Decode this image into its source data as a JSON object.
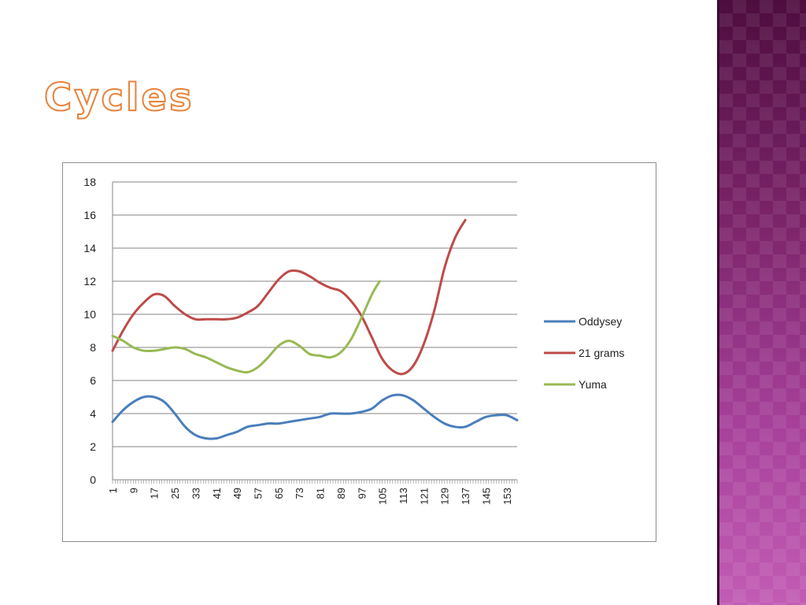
{
  "slide": {
    "title": "Cycles"
  },
  "chart_data": {
    "type": "line",
    "grid": true,
    "legend_position": "right",
    "ylim": [
      0,
      18
    ],
    "yticks": [
      0,
      2,
      4,
      6,
      8,
      10,
      12,
      14,
      16,
      18
    ],
    "xlim": [
      1,
      157
    ],
    "xtick_labels": [
      1,
      9,
      17,
      25,
      33,
      41,
      49,
      57,
      65,
      73,
      81,
      89,
      97,
      105,
      113,
      121,
      129,
      137,
      145,
      153
    ],
    "series": [
      {
        "name": "Oddysey",
        "color": "#4a7ebb",
        "x": [
          1,
          5,
          9,
          13,
          17,
          21,
          25,
          29,
          33,
          37,
          41,
          45,
          49,
          53,
          57,
          61,
          65,
          69,
          73,
          77,
          81,
          85,
          89,
          93,
          97,
          101,
          105,
          109,
          113,
          117,
          121,
          125,
          129,
          133,
          137,
          141,
          145,
          149,
          153,
          157
        ],
        "values": [
          3.5,
          4.2,
          4.7,
          5.0,
          5.0,
          4.7,
          4.0,
          3.2,
          2.7,
          2.5,
          2.5,
          2.7,
          2.9,
          3.2,
          3.3,
          3.4,
          3.4,
          3.5,
          3.6,
          3.7,
          3.8,
          4.0,
          4.0,
          4.0,
          4.1,
          4.3,
          4.8,
          5.1,
          5.1,
          4.8,
          4.3,
          3.8,
          3.4,
          3.2,
          3.2,
          3.5,
          3.8,
          3.9,
          3.9,
          3.6
        ]
      },
      {
        "name": "21 grams",
        "color": "#be4b48",
        "x": [
          1,
          5,
          9,
          13,
          17,
          21,
          25,
          29,
          33,
          37,
          41,
          45,
          49,
          53,
          57,
          61,
          65,
          69,
          73,
          77,
          81,
          85,
          89,
          93,
          97,
          101,
          105,
          109,
          113,
          117,
          121,
          125,
          129,
          133,
          137
        ],
        "values": [
          7.8,
          9.0,
          10.0,
          10.7,
          11.2,
          11.1,
          10.5,
          10.0,
          9.7,
          9.7,
          9.7,
          9.7,
          9.8,
          10.1,
          10.5,
          11.3,
          12.1,
          12.6,
          12.6,
          12.3,
          11.9,
          11.6,
          11.4,
          10.8,
          9.9,
          8.6,
          7.3,
          6.6,
          6.4,
          6.9,
          8.2,
          10.2,
          12.8,
          14.6,
          15.7
        ]
      },
      {
        "name": "Yuma",
        "color": "#98b954",
        "x": [
          1,
          5,
          9,
          13,
          17,
          21,
          25,
          29,
          33,
          37,
          41,
          45,
          49,
          53,
          57,
          61,
          65,
          69,
          73,
          77,
          81,
          85,
          89,
          93,
          97,
          101,
          104
        ],
        "values": [
          8.7,
          8.4,
          8.0,
          7.8,
          7.8,
          7.9,
          8.0,
          7.9,
          7.6,
          7.4,
          7.1,
          6.8,
          6.6,
          6.5,
          6.8,
          7.4,
          8.1,
          8.4,
          8.1,
          7.6,
          7.5,
          7.4,
          7.7,
          8.5,
          9.8,
          11.2,
          12.0
        ]
      }
    ]
  }
}
